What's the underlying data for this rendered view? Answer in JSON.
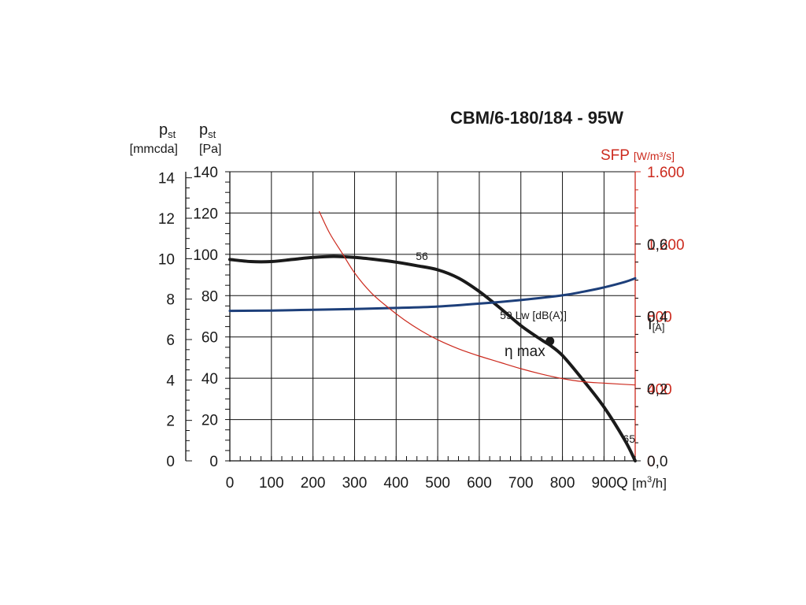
{
  "chart_data": {
    "type": "line",
    "title": "CBM/6-180/184 - 95W",
    "xlabel": {
      "symbol": "Q",
      "unit_pre": "[m",
      "unit_sup": "3",
      "unit_post": "/h]"
    },
    "xlim": [
      0,
      975
    ],
    "xticks": [
      "0",
      "100",
      "200",
      "300",
      "400",
      "500",
      "600",
      "700",
      "800",
      "900"
    ],
    "xtick_values": [
      0,
      100,
      200,
      300,
      400,
      500,
      600,
      700,
      800,
      900
    ],
    "grid": true,
    "left_axis_outer": {
      "label_main": "p",
      "label_sub": "st",
      "unit": "[mmcda]",
      "ylim": [
        0,
        14.3
      ],
      "ticks": [
        "0",
        "2",
        "4",
        "6",
        "8",
        "10",
        "12",
        "14"
      ],
      "tick_values": [
        0,
        2,
        4,
        6,
        8,
        10,
        12,
        14
      ]
    },
    "left_axis_inner": {
      "label_main": "p",
      "label_sub": "st",
      "unit": "[Pa]",
      "ylim": [
        0,
        140
      ],
      "ticks": [
        "0",
        "20",
        "40",
        "60",
        "80",
        "100",
        "120",
        "140"
      ],
      "tick_values": [
        0,
        20,
        40,
        60,
        80,
        100,
        120,
        140
      ]
    },
    "right_axis_sfp": {
      "label": "SFP",
      "unit": "[W/m³/s]",
      "color": "#cc2a1e",
      "ylim": [
        0,
        1600
      ],
      "ticks": [
        "0",
        "400",
        "800",
        "1.200",
        "1.600"
      ],
      "tick_values": [
        0,
        400,
        800,
        1200,
        1600
      ]
    },
    "right_axis_current": {
      "label_main": "I",
      "label_sub": "[A]",
      "ylim": [
        0,
        0.8
      ],
      "ticks": [
        "0,0",
        "0,2",
        "0,4",
        "0,6"
      ],
      "tick_values": [
        0,
        0.2,
        0.4,
        0.6
      ]
    },
    "series": [
      {
        "name": "pressure",
        "axis": "left_axis_inner",
        "color": "#1a1a1a",
        "width": 4,
        "x": [
          0,
          50,
          100,
          150,
          200,
          250,
          300,
          350,
          400,
          450,
          500,
          550,
          600,
          650,
          700,
          750,
          770,
          800,
          850,
          900,
          950,
          975
        ],
        "y": [
          97.5,
          96.5,
          96.5,
          97.5,
          98.5,
          99,
          98.5,
          97.5,
          96.2,
          94.5,
          92.5,
          88.5,
          82,
          74,
          65.5,
          58.5,
          56,
          51,
          39,
          26,
          10,
          0
        ]
      },
      {
        "name": "current",
        "axis": "right_axis_current",
        "color": "#1d3f7a",
        "width": 3,
        "x": [
          0,
          100,
          200,
          300,
          400,
          500,
          600,
          700,
          800,
          850,
          900,
          950,
          975
        ],
        "y": [
          0.415,
          0.416,
          0.418,
          0.42,
          0.423,
          0.427,
          0.435,
          0.445,
          0.458,
          0.468,
          0.48,
          0.495,
          0.505
        ]
      },
      {
        "name": "SFP",
        "axis": "right_axis_sfp",
        "color": "#cc2a1e",
        "width": 1.2,
        "x": [
          215,
          240,
          270,
          300,
          340,
          380,
          420,
          460,
          500,
          550,
          600,
          650,
          700,
          750,
          800,
          850,
          900,
          975
        ],
        "y": [
          1380,
          1260,
          1150,
          1040,
          930,
          850,
          780,
          720,
          670,
          620,
          580,
          545,
          510,
          480,
          455,
          438,
          430,
          420
        ]
      }
    ],
    "annotations": [
      {
        "text": "56",
        "x": 462,
        "y": 99.5,
        "color": "#1d3f7a"
      },
      {
        "text": "59 Lw [dB(A)]",
        "x": 730,
        "y": 71,
        "color": "#1d3f7a"
      },
      {
        "text": "65",
        "x": 975,
        "y": 11,
        "color": "#1d3f7a"
      }
    ],
    "markers": [
      {
        "label_symbol": "η",
        "label_text": "max",
        "x": 770,
        "y": 58
      }
    ]
  }
}
